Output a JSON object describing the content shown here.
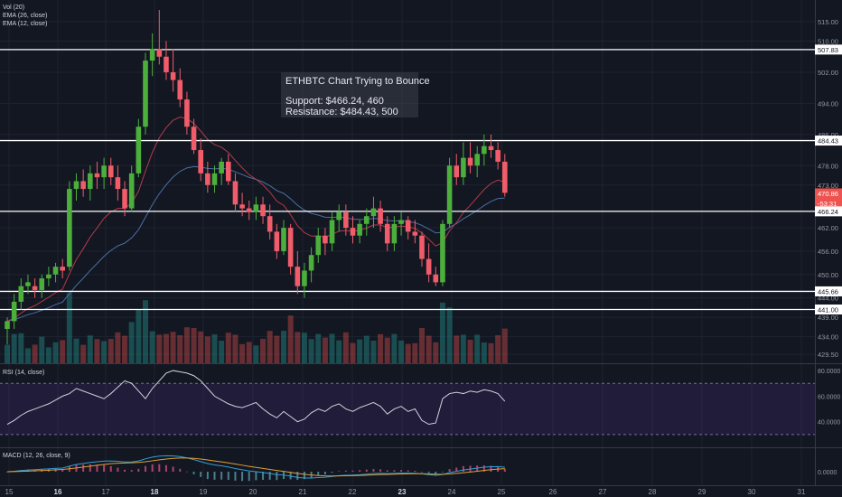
{
  "chart_data": [
    {
      "type": "candlestick",
      "symbol": "ETHBTC",
      "annotation": {
        "title": "ETHBTC Chart Trying to Bounce",
        "support": "Support: $466.24, 460",
        "resistance": "Resistance: $484.43, 500"
      },
      "indicators": [
        "Vol (20)",
        "EMA (26, close)",
        "EMA (12, close)"
      ],
      "y_ticks": [
        "515.00",
        "510.00",
        "502.00",
        "494.00",
        "486.00",
        "478.00",
        "473.00",
        "462.00",
        "456.00",
        "450.00",
        "444.00",
        "439.00",
        "434.00",
        "429.50"
      ],
      "x_labels": [
        "15",
        "16",
        "17",
        "18",
        "19",
        "20",
        "21",
        "22",
        "23",
        "24",
        "25",
        "26",
        "27",
        "28",
        "29",
        "30",
        "31"
      ],
      "bold_x": [
        "16",
        "18",
        "23"
      ],
      "horizontal_levels": [
        507.83,
        484.43,
        466.24,
        445.66,
        441.0
      ],
      "price_labels": [
        {
          "text": "507.83",
          "kind": "level"
        },
        {
          "text": "484.43",
          "kind": "level"
        },
        {
          "text": "470.86",
          "kind": "last"
        },
        {
          "text": "-53:31",
          "kind": "timer"
        },
        {
          "text": "466.24",
          "kind": "level"
        },
        {
          "text": "445.66",
          "kind": "level"
        },
        {
          "text": "441.00",
          "kind": "level"
        }
      ],
      "last_price": 470.86,
      "candles": [
        [
          436,
          439,
          432,
          438
        ],
        [
          438,
          445,
          436,
          443
        ],
        [
          443,
          449,
          441,
          447
        ],
        [
          447,
          450,
          445,
          448
        ],
        [
          447,
          449,
          444,
          446
        ],
        [
          446,
          450,
          444,
          449
        ],
        [
          449,
          452,
          447,
          450
        ],
        [
          450,
          453,
          448,
          452
        ],
        [
          452,
          454,
          449,
          451
        ],
        [
          452,
          474,
          451,
          472
        ],
        [
          472,
          476,
          469,
          474
        ],
        [
          474,
          477,
          470,
          472
        ],
        [
          472,
          478,
          469,
          476
        ],
        [
          476,
          479,
          472,
          475
        ],
        [
          475,
          480,
          472,
          478
        ],
        [
          478,
          480,
          473,
          475
        ],
        [
          475,
          478,
          469,
          472
        ],
        [
          472,
          474,
          465,
          467
        ],
        [
          467,
          478,
          466,
          476
        ],
        [
          476,
          490,
          475,
          488
        ],
        [
          488,
          507,
          486,
          505
        ],
        [
          505,
          512,
          501,
          508
        ],
        [
          508,
          518,
          504,
          506
        ],
        [
          506,
          510,
          500,
          502
        ],
        [
          502,
          508,
          497,
          500
        ],
        [
          500,
          503,
          493,
          495
        ],
        [
          495,
          497,
          486,
          488
        ],
        [
          488,
          490,
          481,
          482
        ],
        [
          482,
          485,
          474,
          476
        ],
        [
          476,
          479,
          471,
          473
        ],
        [
          473,
          478,
          471,
          476
        ],
        [
          476,
          480,
          473,
          479
        ],
        [
          479,
          481,
          473,
          474
        ],
        [
          474,
          476,
          466,
          468
        ],
        [
          468,
          471,
          465,
          467
        ],
        [
          467,
          469,
          464,
          466
        ],
        [
          466,
          470,
          464,
          468
        ],
        [
          468,
          470,
          463,
          465
        ],
        [
          465,
          468,
          459,
          461
        ],
        [
          461,
          463,
          454,
          456
        ],
        [
          456,
          464,
          455,
          462
        ],
        [
          462,
          463,
          450,
          452
        ],
        [
          452,
          456,
          445,
          447
        ],
        [
          447,
          453,
          444,
          451
        ],
        [
          451,
          457,
          448,
          455
        ],
        [
          455,
          462,
          453,
          460
        ],
        [
          460,
          462,
          455,
          458
        ],
        [
          458,
          466,
          456,
          464
        ],
        [
          464,
          468,
          461,
          466
        ],
        [
          466,
          468,
          460,
          462
        ],
        [
          462,
          465,
          458,
          460
        ],
        [
          460,
          464,
          458,
          463
        ],
        [
          463,
          467,
          460,
          465
        ],
        [
          465,
          470,
          462,
          467
        ],
        [
          467,
          469,
          461,
          463
        ],
        [
          463,
          465,
          456,
          458
        ],
        [
          458,
          465,
          456,
          463
        ],
        [
          463,
          466,
          460,
          464
        ],
        [
          464,
          465,
          459,
          461
        ],
        [
          461,
          464,
          458,
          460
        ],
        [
          460,
          461,
          452,
          454
        ],
        [
          454,
          458,
          448,
          450
        ],
        [
          450,
          452,
          447,
          448
        ],
        [
          448,
          464,
          447,
          463
        ],
        [
          463,
          480,
          462,
          478
        ],
        [
          478,
          481,
          473,
          475
        ],
        [
          475,
          484,
          473,
          480
        ],
        [
          480,
          484,
          476,
          478
        ],
        [
          478,
          483,
          475,
          481
        ],
        [
          481,
          486,
          478,
          483
        ],
        [
          483,
          486,
          480,
          482
        ],
        [
          482,
          484,
          477,
          479
        ],
        [
          479,
          481,
          470,
          471
        ]
      ],
      "volume_indicator": "Vol (20)",
      "rsi": {
        "label": "RSI (14, close)",
        "ticks": [
          "80.0000",
          "60.0000",
          "40.0000"
        ],
        "band_top": 70,
        "band_bottom": 30,
        "ylim": [
          20,
          85
        ],
        "values": [
          38,
          41,
          45,
          48,
          50,
          52,
          54,
          57,
          60,
          62,
          66,
          64,
          62,
          60,
          58,
          62,
          67,
          72,
          70,
          64,
          58,
          66,
          72,
          78,
          80,
          79,
          78,
          76,
          72,
          66,
          60,
          57,
          54,
          52,
          51,
          53,
          55,
          50,
          46,
          43,
          48,
          44,
          40,
          42,
          47,
          50,
          48,
          52,
          54,
          50,
          48,
          51,
          53,
          55,
          52,
          46,
          50,
          52,
          48,
          50,
          41,
          38,
          39,
          58,
          62,
          63,
          62,
          64,
          63,
          65,
          64,
          62,
          56
        ]
      },
      "macd": {
        "label": "MACD (12, 26, close, 9)",
        "tick": "0.0000"
      }
    }
  ]
}
